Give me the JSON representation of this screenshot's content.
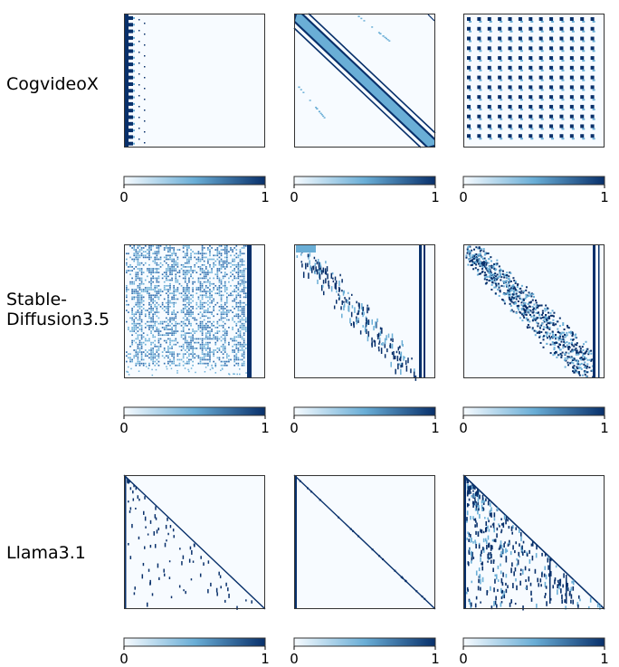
{
  "figure": {
    "rows": [
      {
        "label": "CogvideoX"
      },
      {
        "label": "Stable-\nDiffusion3.5"
      },
      {
        "label": "Llama3.1"
      }
    ],
    "colormap": {
      "name": "Blues",
      "low": "#f7fbff",
      "mid": "#6aaed6",
      "high": "#08306b"
    }
  },
  "chart_data": [
    {
      "type": "heatmap",
      "row": "CogvideoX",
      "panel": 1,
      "pattern": "vertical-stripes-left",
      "colorbar": {
        "min": 0,
        "max": 1,
        "ticks": [
          "0",
          "1"
        ]
      }
    },
    {
      "type": "heatmap",
      "row": "CogvideoX",
      "panel": 2,
      "pattern": "diagonal-band",
      "colorbar": {
        "min": 0,
        "max": 1,
        "ticks": [
          "0",
          "1"
        ]
      }
    },
    {
      "type": "heatmap",
      "row": "CogvideoX",
      "panel": 3,
      "pattern": "grid-blocks",
      "colorbar": {
        "min": 0,
        "max": 1,
        "ticks": [
          "0",
          "1"
        ]
      }
    },
    {
      "type": "heatmap",
      "row": "Stable-Diffusion3.5",
      "panel": 1,
      "pattern": "dense-noise-with-right-stripe",
      "colorbar": {
        "min": 0,
        "max": 1,
        "ticks": [
          "0",
          "1"
        ]
      }
    },
    {
      "type": "heatmap",
      "row": "Stable-Diffusion3.5",
      "panel": 2,
      "pattern": "sparse-diagonal-with-right-stripe",
      "colorbar": {
        "min": 0,
        "max": 1,
        "ticks": [
          "0",
          "1"
        ]
      }
    },
    {
      "type": "heatmap",
      "row": "Stable-Diffusion3.5",
      "panel": 3,
      "pattern": "dense-diagonal-with-right-stripe",
      "colorbar": {
        "min": 0,
        "max": 1,
        "ticks": [
          "0",
          "1"
        ]
      }
    },
    {
      "type": "heatmap",
      "row": "Llama3.1",
      "panel": 1,
      "pattern": "lower-triangular-sparse",
      "colorbar": {
        "min": 0,
        "max": 1,
        "ticks": [
          "0",
          "1"
        ]
      }
    },
    {
      "type": "heatmap",
      "row": "Llama3.1",
      "panel": 2,
      "pattern": "thin-diagonal",
      "colorbar": {
        "min": 0,
        "max": 1,
        "ticks": [
          "0",
          "1"
        ]
      }
    },
    {
      "type": "heatmap",
      "row": "Llama3.1",
      "panel": 3,
      "pattern": "lower-triangular-dense",
      "colorbar": {
        "min": 0,
        "max": 1,
        "ticks": [
          "0",
          "1"
        ]
      }
    }
  ]
}
